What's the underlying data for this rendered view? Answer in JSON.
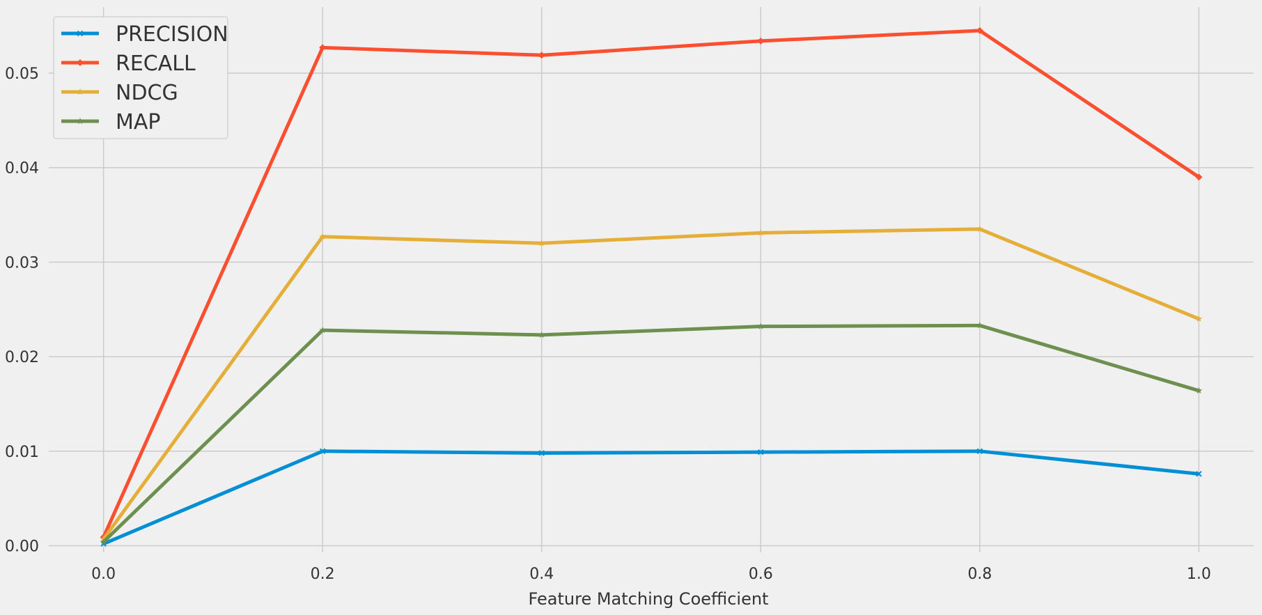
{
  "chart_data": {
    "type": "line",
    "title": "",
    "xlabel": "Feature Matching Coefficient",
    "ylabel": "",
    "x": [
      0.0,
      0.2,
      0.4,
      0.6,
      0.8,
      1.0
    ],
    "xticks": [
      "0.0",
      "0.2",
      "0.4",
      "0.6",
      "0.8",
      "1.0"
    ],
    "yticks": [
      "0.00",
      "0.01",
      "0.02",
      "0.03",
      "0.04",
      "0.05"
    ],
    "xlim": [
      -0.05,
      1.05
    ],
    "ylim": [
      -0.0007,
      0.057
    ],
    "grid": true,
    "legend_position": "top-left",
    "series": [
      {
        "name": "PRECISION",
        "color": "#008fd5",
        "marker": "x",
        "values": [
          0.0002,
          0.01,
          0.0098,
          0.0099,
          0.01,
          0.0076
        ]
      },
      {
        "name": "RECALL",
        "color": "#fc4f30",
        "marker": "diamond",
        "values": [
          0.0009,
          0.0527,
          0.0519,
          0.0534,
          0.0545,
          0.039
        ]
      },
      {
        "name": "NDCG",
        "color": "#e5ae38",
        "marker": "star",
        "values": [
          0.0007,
          0.0327,
          0.032,
          0.0331,
          0.0335,
          0.024
        ]
      },
      {
        "name": "MAP",
        "color": "#6d904f",
        "marker": "star",
        "values": [
          0.0004,
          0.0228,
          0.0223,
          0.0232,
          0.0233,
          0.0164
        ]
      }
    ]
  }
}
